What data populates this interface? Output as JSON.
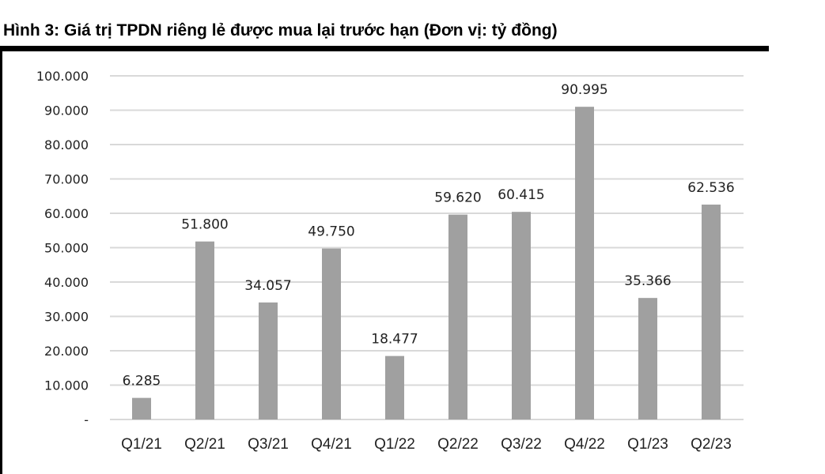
{
  "chart_data": {
    "type": "bar",
    "title": "Hình 3: Giá trị TPDN riêng lẻ được mua lại trước hạn (Đơn vị: tỷ đồng)",
    "categories": [
      "Q1/21",
      "Q2/21",
      "Q3/21",
      "Q4/21",
      "Q1/22",
      "Q2/22",
      "Q3/22",
      "Q4/22",
      "Q1/23",
      "Q2/23"
    ],
    "values": [
      6285,
      51800,
      34057,
      49750,
      18477,
      59620,
      60415,
      90995,
      35366,
      62536
    ],
    "data_labels": [
      "6.285",
      "51.800",
      "34.057",
      "49.750",
      "18.477",
      "59.620",
      "60.415",
      "90.995",
      "35.366",
      "62.536"
    ],
    "ylim": [
      0,
      100000
    ],
    "yticks": [
      0,
      10000,
      20000,
      30000,
      40000,
      50000,
      60000,
      70000,
      80000,
      90000,
      100000
    ],
    "ytick_labels": [
      "-",
      "10.000",
      "20.000",
      "30.000",
      "40.000",
      "50.000",
      "60.000",
      "70.000",
      "80.000",
      "90.000",
      "100.000"
    ],
    "grid": true,
    "bar_color": "#a0a0a0",
    "grid_color": "#d9d9d9"
  }
}
